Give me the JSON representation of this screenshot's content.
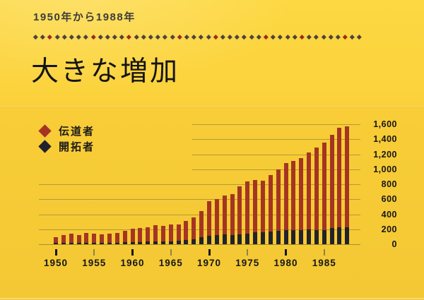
{
  "header": {
    "subtitle": "1950年から1988年",
    "title": "大きな増加",
    "divider": {
      "count": 46,
      "red_indexes": [
        2,
        8,
        13,
        20,
        25,
        32,
        37,
        43
      ],
      "gray_color": "#4c4440",
      "red_color": "#9e2d1d"
    }
  },
  "legend": [
    {
      "label": "伝道者",
      "color": "#a43522"
    },
    {
      "label": "開拓者",
      "color": "#22222c"
    }
  ],
  "colors": {
    "background": "#fbd33c",
    "publishers_bar": "#a43522",
    "pioneers_bar": "#22222c",
    "gridline": "#b29a35",
    "text": "#161616"
  },
  "chart_data": {
    "type": "bar",
    "title": "大きな増加",
    "subtitle": "1950年から1988年",
    "x": [
      1950,
      1951,
      1952,
      1953,
      1954,
      1955,
      1956,
      1957,
      1958,
      1959,
      1960,
      1961,
      1962,
      1963,
      1964,
      1965,
      1966,
      1967,
      1968,
      1969,
      1970,
      1971,
      1972,
      1973,
      1974,
      1975,
      1976,
      1977,
      1978,
      1979,
      1980,
      1981,
      1982,
      1983,
      1984,
      1985,
      1986,
      1987,
      1988
    ],
    "series": [
      {
        "name": "伝道者",
        "color": "#a43522",
        "values": [
          90,
          125,
          140,
          125,
          150,
          140,
          135,
          140,
          155,
          180,
          205,
          215,
          230,
          250,
          245,
          265,
          260,
          310,
          360,
          440,
          570,
          600,
          650,
          665,
          770,
          840,
          860,
          850,
          925,
          1000,
          1080,
          1110,
          1150,
          1220,
          1285,
          1360,
          1455,
          1550,
          1570
        ]
      },
      {
        "name": "開拓者",
        "color": "#22222c",
        "values": [
          15,
          15,
          20,
          15,
          20,
          20,
          20,
          20,
          20,
          25,
          30,
          30,
          35,
          40,
          40,
          40,
          45,
          55,
          65,
          90,
          115,
          125,
          130,
          120,
          130,
          140,
          160,
          160,
          170,
          180,
          190,
          185,
          190,
          200,
          185,
          190,
          220,
          230,
          225
        ]
      }
    ],
    "x_tick_labels": [
      "1950",
      "1955",
      "1960",
      "1965",
      "1970",
      "1975",
      "1980",
      "1985"
    ],
    "y_ticks": [
      0,
      200,
      400,
      600,
      800,
      1000,
      1200,
      1400,
      1600
    ],
    "y_tick_labels": [
      "0",
      "200",
      "400",
      "600",
      "800",
      "1,000",
      "1,200",
      "1,400",
      "1,600"
    ],
    "ylim": [
      0,
      1600
    ],
    "grid": true,
    "legend_position": "top-left",
    "bar_style": "pioneers drawn as dark segment at base of publishers bar (overlay)"
  }
}
